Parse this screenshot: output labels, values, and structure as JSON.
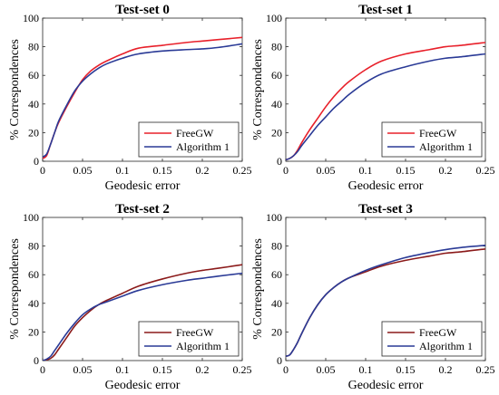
{
  "chart_data": [
    {
      "type": "line",
      "title": "Test-set 0",
      "xlabel": "Geodesic error",
      "ylabel": "% Correspondences",
      "xlim": [
        0,
        0.25
      ],
      "ylim": [
        0,
        100
      ],
      "xticks": [
        "0",
        "0.05",
        "0.1",
        "0.15",
        "0.2",
        "0.25"
      ],
      "yticks": [
        "0",
        "20",
        "40",
        "60",
        "80",
        "100"
      ],
      "legend_position": "bottom-right",
      "x": [
        0,
        0.005,
        0.01,
        0.015,
        0.02,
        0.03,
        0.04,
        0.05,
        0.06,
        0.07,
        0.08,
        0.1,
        0.12,
        0.15,
        0.18,
        0.2,
        0.22,
        0.25
      ],
      "series": [
        {
          "name": "FreeGW",
          "color": "#e8202a",
          "values": [
            2,
            4,
            12,
            20,
            27,
            38,
            48,
            57,
            63,
            67,
            70,
            75,
            79,
            81,
            83,
            84,
            85,
            86.5
          ]
        },
        {
          "name": "Algorithm 1",
          "color": "#2a3a96",
          "values": [
            3,
            5,
            12,
            20,
            28,
            39,
            49,
            56,
            61,
            65,
            68,
            72,
            75,
            77,
            78,
            78.5,
            79.5,
            82
          ]
        }
      ]
    },
    {
      "type": "line",
      "title": "Test-set 1",
      "xlabel": "Geodesic error",
      "ylabel": "% Correspondences",
      "xlim": [
        0,
        0.25
      ],
      "ylim": [
        0,
        100
      ],
      "xticks": [
        "0",
        "0.05",
        "0.1",
        "0.15",
        "0.2",
        "0.25"
      ],
      "yticks": [
        "0",
        "20",
        "40",
        "60",
        "80",
        "100"
      ],
      "legend_position": "bottom-right",
      "x": [
        0,
        0.005,
        0.01,
        0.015,
        0.02,
        0.03,
        0.04,
        0.05,
        0.06,
        0.07,
        0.08,
        0.1,
        0.12,
        0.15,
        0.18,
        0.2,
        0.22,
        0.25
      ],
      "series": [
        {
          "name": "FreeGW",
          "color": "#e8202a",
          "values": [
            1,
            2,
            4,
            8,
            13,
            22,
            30,
            38,
            45,
            51,
            56,
            64,
            70,
            75,
            78,
            80,
            81,
            83
          ]
        },
        {
          "name": "Algorithm 1",
          "color": "#2a3a96",
          "values": [
            1,
            2,
            4,
            7,
            11,
            18,
            25,
            31,
            37,
            42,
            47,
            55,
            61,
            66,
            70,
            72,
            73,
            75
          ]
        }
      ]
    },
    {
      "type": "line",
      "title": "Test-set 2",
      "xlabel": "Geodesic error",
      "ylabel": "% Correspondences",
      "xlim": [
        0,
        0.25
      ],
      "ylim": [
        0,
        100
      ],
      "xticks": [
        "0",
        "0.05",
        "0.1",
        "0.15",
        "0.2",
        "0.25"
      ],
      "yticks": [
        "0",
        "20",
        "40",
        "60",
        "80",
        "100"
      ],
      "legend_position": "bottom-right",
      "x": [
        0,
        0.005,
        0.01,
        0.015,
        0.02,
        0.03,
        0.04,
        0.05,
        0.06,
        0.07,
        0.08,
        0.1,
        0.12,
        0.15,
        0.18,
        0.2,
        0.22,
        0.25
      ],
      "series": [
        {
          "name": "FreeGW",
          "color": "#8b1a1a",
          "values": [
            0,
            0.5,
            1.5,
            4,
            8,
            16,
            24,
            30,
            35,
            39,
            42,
            47,
            52,
            57,
            61,
            63,
            64.5,
            67
          ]
        },
        {
          "name": "Algorithm 1",
          "color": "#2a3a96",
          "values": [
            0,
            1,
            3,
            7,
            11,
            19,
            26,
            32,
            36,
            39,
            41,
            45,
            49,
            53,
            56,
            57.5,
            59,
            61
          ]
        }
      ]
    },
    {
      "type": "line",
      "title": "Test-set 3",
      "xlabel": "Geodesic error",
      "ylabel": "% Correspondences",
      "xlim": [
        0,
        0.25
      ],
      "ylim": [
        0,
        100
      ],
      "xticks": [
        "0",
        "0.05",
        "0.1",
        "0.15",
        "0.2",
        "0.25"
      ],
      "yticks": [
        "0",
        "20",
        "40",
        "60",
        "80",
        "100"
      ],
      "legend_position": "bottom-right",
      "x": [
        0,
        0.005,
        0.01,
        0.015,
        0.02,
        0.03,
        0.04,
        0.05,
        0.06,
        0.07,
        0.08,
        0.1,
        0.12,
        0.15,
        0.18,
        0.2,
        0.22,
        0.25
      ],
      "series": [
        {
          "name": "FreeGW",
          "color": "#8b1a1a",
          "values": [
            3,
            4,
            8,
            13,
            19,
            30,
            39,
            46,
            51,
            55,
            58,
            62,
            66,
            70,
            73,
            75,
            76,
            78
          ]
        },
        {
          "name": "Algorithm 1",
          "color": "#2a3a96",
          "values": [
            3,
            4,
            8,
            13,
            19,
            30,
            39,
            46,
            51,
            55,
            58,
            63,
            67,
            72,
            75.5,
            77.5,
            79,
            80.5
          ]
        }
      ]
    }
  ]
}
